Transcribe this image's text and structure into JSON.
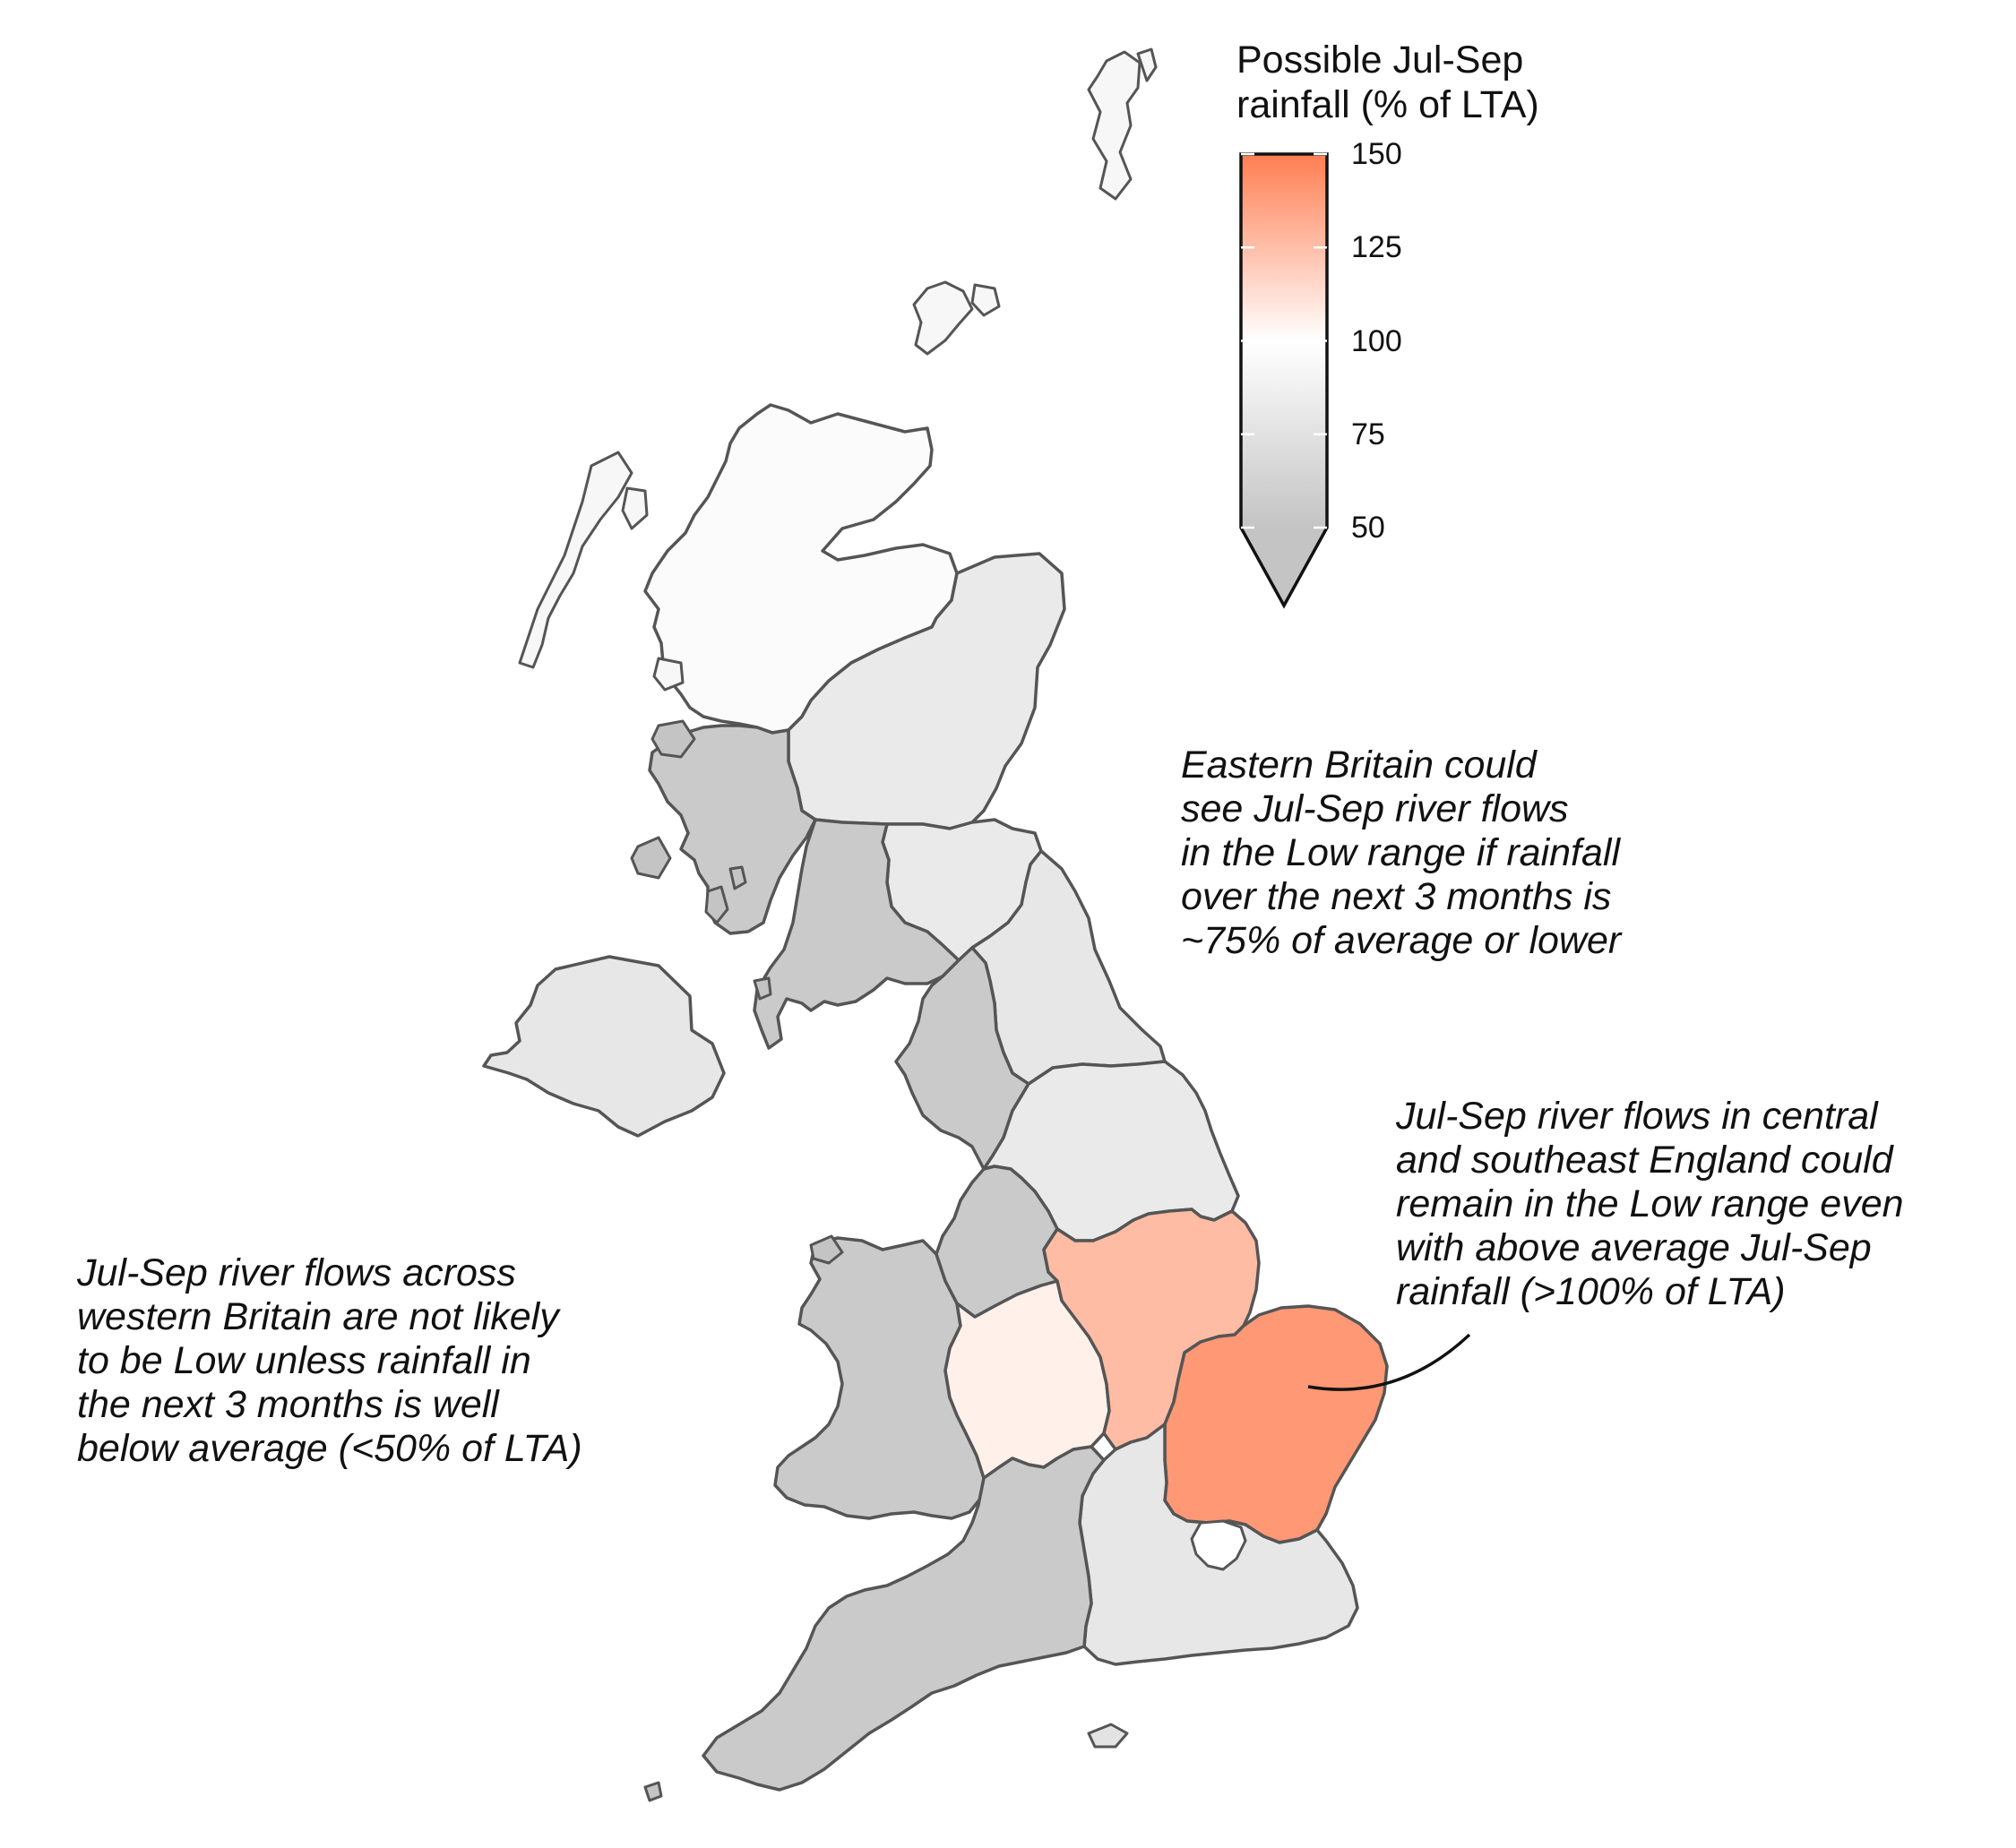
{
  "legend": {
    "title": "Possible Jul-Sep\nrainfall (% of LTA)",
    "ticks": [
      {
        "value": 150,
        "label": "150"
      },
      {
        "value": 125,
        "label": "125"
      },
      {
        "value": 100,
        "label": "100"
      },
      {
        "value": 75,
        "label": "75"
      },
      {
        "value": 50,
        "label": "50"
      }
    ],
    "range": [
      50,
      150
    ],
    "extend": "below",
    "colors": {
      "low": "#c4c4c4",
      "mid": "#ffffff",
      "high": "#ff7e52"
    }
  },
  "regions": [
    {
      "id": "north-west-scotland",
      "value": 97
    },
    {
      "id": "north-east-scotland",
      "value": 82
    },
    {
      "id": "west-scotland",
      "value": 55
    },
    {
      "id": "south-east-scotland",
      "value": 82
    },
    {
      "id": "solway-borders",
      "value": 55
    },
    {
      "id": "north-east-england",
      "value": 80
    },
    {
      "id": "north-west-england",
      "value": 55
    },
    {
      "id": "yorkshire",
      "value": 82
    },
    {
      "id": "wales",
      "value": 55
    },
    {
      "id": "midlands",
      "value": 106
    },
    {
      "id": "anglian",
      "value": 126
    },
    {
      "id": "east-anglia",
      "value": 140
    },
    {
      "id": "south-west-england",
      "value": 55
    },
    {
      "id": "thames",
      "value": 80
    },
    {
      "id": "northern-ireland",
      "value": 80
    }
  ],
  "colors": {
    "outline": "#555555",
    "callout": "#111111"
  },
  "annotations": {
    "eastern": "Eastern Britain could\nsee Jul-Sep river flows\nin the Low range if rainfall\nover the next 3 months is\n~75% of average or lower",
    "southeast": "Jul-Sep river flows in central\nand southeast England could\nremain in the Low range even\nwith above average Jul-Sep\nrainfall (>100% of LTA)",
    "western": "Jul-Sep river flows across\nwestern Britain are not likely\nto be Low unless rainfall in\nthe next 3 months is well\nbelow average (<50% of LTA)"
  }
}
